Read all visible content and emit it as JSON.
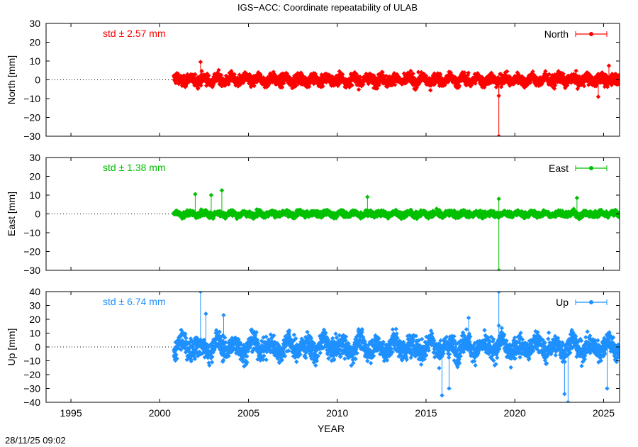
{
  "title": "IGS−ACC: Coordinate repeatability of ULAB",
  "timestamp": "28/11/25 09:02",
  "xlabel": "YEAR",
  "chart_data": [
    {
      "type": "scatter",
      "name": "North",
      "ylabel": "North [mm]",
      "std_label": "std ± 2.57 mm",
      "std_mm": 2.57,
      "color": "#ff0000",
      "ylim": [
        -30,
        30
      ],
      "yticks": [
        -30,
        -20,
        -10,
        0,
        10,
        20,
        30
      ],
      "xlim": [
        1993.6,
        2025.9
      ],
      "data_start": 2000.8,
      "data_end": 2025.9,
      "legend": "top-right",
      "outliers": [
        {
          "x": 2002.3,
          "y": 9.5
        },
        {
          "x": 2019.1,
          "y": -8.5
        },
        {
          "x": 2019.1,
          "y": -30
        },
        {
          "x": 2024.7,
          "y": -9
        },
        {
          "x": 2025.3,
          "y": 7.5
        }
      ]
    },
    {
      "type": "scatter",
      "name": "East",
      "ylabel": "East [mm]",
      "std_label": "std ± 1.38 mm",
      "std_mm": 1.38,
      "color": "#00c000",
      "ylim": [
        -30,
        30
      ],
      "yticks": [
        -30,
        -20,
        -10,
        0,
        10,
        20,
        30
      ],
      "xlim": [
        1993.6,
        2025.9
      ],
      "data_start": 2000.8,
      "data_end": 2025.9,
      "legend": "top-right",
      "outliers": [
        {
          "x": 2002.0,
          "y": 10.5
        },
        {
          "x": 2002.9,
          "y": 10
        },
        {
          "x": 2003.5,
          "y": 12.5
        },
        {
          "x": 2011.7,
          "y": 9
        },
        {
          "x": 2019.1,
          "y": 8
        },
        {
          "x": 2019.1,
          "y": -30
        },
        {
          "x": 2023.5,
          "y": 8.5
        }
      ]
    },
    {
      "type": "scatter",
      "name": "Up",
      "ylabel": "Up [mm]",
      "std_label": "std ± 6.74 mm",
      "std_mm": 6.74,
      "color": "#1e90ff",
      "ylim": [
        -40,
        40
      ],
      "yticks": [
        -40,
        -30,
        -20,
        -10,
        0,
        10,
        20,
        30,
        40
      ],
      "xlim": [
        1993.6,
        2025.9
      ],
      "data_start": 2000.8,
      "data_end": 2025.9,
      "legend": "top-right",
      "outliers": [
        {
          "x": 2002.3,
          "y": 40
        },
        {
          "x": 2002.6,
          "y": 24
        },
        {
          "x": 2003.6,
          "y": 23
        },
        {
          "x": 2015.9,
          "y": -35
        },
        {
          "x": 2016.3,
          "y": -30
        },
        {
          "x": 2017.4,
          "y": 21
        },
        {
          "x": 2019.1,
          "y": 40
        },
        {
          "x": 2022.8,
          "y": -34
        },
        {
          "x": 2023.0,
          "y": -40
        },
        {
          "x": 2025.2,
          "y": -30
        }
      ]
    }
  ],
  "xaxis": {
    "ticks": [
      1995,
      2000,
      2005,
      2010,
      2015,
      2020,
      2025
    ],
    "labels": [
      "1995",
      "2000",
      "2005",
      "2010",
      "2015",
      "2020",
      "2025"
    ]
  }
}
